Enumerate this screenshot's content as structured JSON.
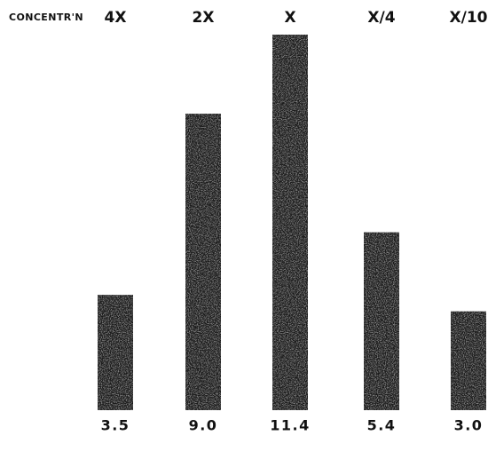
{
  "chart_data": {
    "type": "bar",
    "title": "",
    "xlabel": "",
    "ylabel": "",
    "row_label": "CONCENTR'N",
    "categories": [
      "4X",
      "2X",
      "X",
      "X/4",
      "X/10"
    ],
    "values": [
      3.5,
      9.0,
      11.4,
      5.4,
      3.0
    ],
    "value_labels": [
      "3.5",
      "9.0",
      "11.4",
      "5.4",
      "3.0"
    ],
    "ylim": [
      0,
      11.4
    ],
    "grid": false,
    "legend": "none",
    "bar_color": "#1c1c1c",
    "bar_texture_color": "#6a6a6a"
  }
}
